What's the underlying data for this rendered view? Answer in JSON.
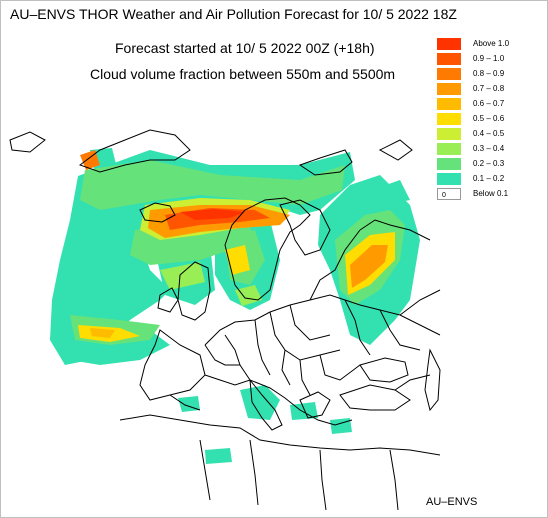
{
  "header": {
    "title": "AU–ENVS THOR Weather and Air Pollution Forecast for 10/ 5 2022  18Z",
    "forecast_start": "Forecast started at 10/ 5 2022  00Z (+18h)",
    "variable": "Cloud volume fraction between 550m and 5500m"
  },
  "legend": {
    "items": [
      {
        "label": "Above   1.0",
        "color": "#ff3300"
      },
      {
        "label": "0.9 – 1.0",
        "color": "#ff5500"
      },
      {
        "label": "0.8 – 0.9",
        "color": "#ff7a00"
      },
      {
        "label": "0.7 – 0.8",
        "color": "#ff9a00"
      },
      {
        "label": "0.6 – 0.7",
        "color": "#ffbb00"
      },
      {
        "label": "0.5 – 0.6",
        "color": "#ffdd00"
      },
      {
        "label": "0.4 – 0.5",
        "color": "#ccee33"
      },
      {
        "label": "0.3 – 0.4",
        "color": "#99ee55"
      },
      {
        "label": "0.2 – 0.3",
        "color": "#66e27a"
      },
      {
        "label": "0.1 – 0.2",
        "color": "#33e0b0"
      },
      {
        "label": "Below   0.1",
        "color": "#ffffff",
        "swatch_text": "0"
      }
    ]
  },
  "credit": "AU–ENVS"
}
